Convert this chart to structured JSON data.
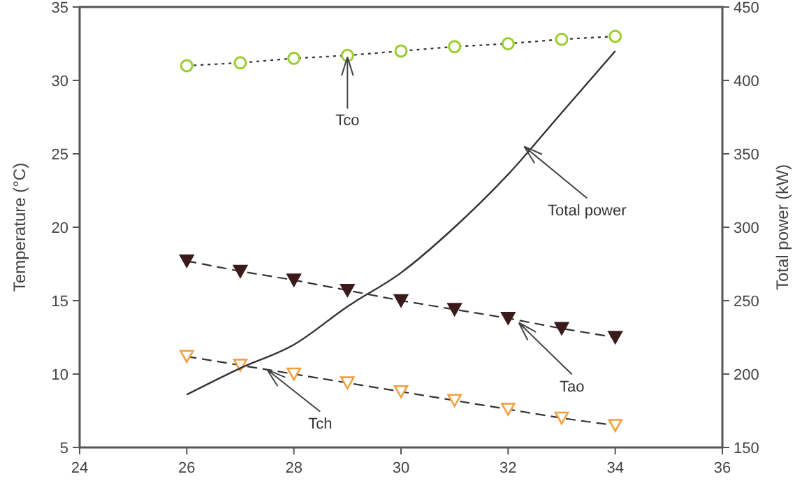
{
  "chart_data": {
    "type": "line",
    "ylabel": "Temperature (°C)",
    "y2label": "Total power (kW)",
    "x": [
      26,
      27,
      28,
      29,
      30,
      31,
      32,
      33,
      34
    ],
    "xlim": [
      24,
      36
    ],
    "xticks": [
      24,
      26,
      28,
      30,
      32,
      34,
      36
    ],
    "ylim": [
      5,
      35
    ],
    "yticks": [
      5,
      10,
      15,
      20,
      25,
      30,
      35
    ],
    "y2lim": [
      150,
      450
    ],
    "y2ticks": [
      150,
      200,
      250,
      300,
      350,
      400,
      450
    ],
    "series": [
      {
        "color": "#9acd32",
        "marker": "circle",
        "line_style": "dotted",
        "values": [
          31.0,
          31.2,
          31.5,
          31.7,
          32.0,
          32.3,
          32.5,
          32.8,
          33.0
        ]
      },
      {
        "color": "#3a1a1a",
        "marker": "triangle",
        "line_style": "dashed",
        "values": [
          17.7,
          17.0,
          16.4,
          15.7,
          15.0,
          14.4,
          13.8,
          13.1,
          12.5
        ]
      },
      {
        "color": "#f4a040",
        "marker": "triangle",
        "line_style": "dashed",
        "values": [
          11.2,
          10.6,
          10.0,
          9.4,
          8.8,
          8.2,
          7.6,
          7.0,
          6.5
        ]
      },
      {
        "color": "#333333",
        "marker": "none",
        "line_style": "solid",
        "axis": "y2",
        "values": [
          186,
          204,
          220,
          246,
          269,
          300,
          336,
          378,
          420
        ]
      }
    ],
    "annotations": [
      {
        "text": "Tco",
        "x": 29,
        "y": 31.6
      },
      {
        "text": "Total power",
        "x": 32.3,
        "y": 25.5
      },
      {
        "text": "Tao",
        "x": 32.2,
        "y": 13.5
      },
      {
        "text": "Tch",
        "x": 27.5,
        "y": 10.3
      }
    ]
  }
}
